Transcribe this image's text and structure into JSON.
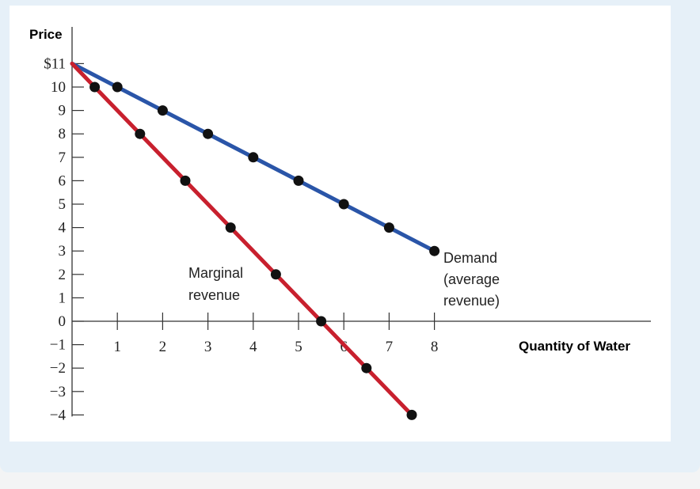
{
  "chart_data": {
    "type": "line",
    "ylabel": "Price",
    "xlabel": "Quantity of Water",
    "xlim": [
      0,
      8
    ],
    "ylim": [
      -4,
      11
    ],
    "x_ticks": [
      "1",
      "2",
      "3",
      "4",
      "5",
      "6",
      "7",
      "8"
    ],
    "y_ticks": [
      {
        "value": 11,
        "label": "$11"
      },
      {
        "value": 10,
        "label": "10"
      },
      {
        "value": 9,
        "label": "9"
      },
      {
        "value": 8,
        "label": "8"
      },
      {
        "value": 7,
        "label": "7"
      },
      {
        "value": 6,
        "label": "6"
      },
      {
        "value": 5,
        "label": "5"
      },
      {
        "value": 4,
        "label": "4"
      },
      {
        "value": 3,
        "label": "3"
      },
      {
        "value": 2,
        "label": "2"
      },
      {
        "value": 1,
        "label": "1"
      },
      {
        "value": 0,
        "label": "0"
      },
      {
        "value": -1,
        "label": "−1"
      },
      {
        "value": -2,
        "label": "−2"
      },
      {
        "value": -3,
        "label": "−3"
      },
      {
        "value": -4,
        "label": "−4"
      }
    ],
    "grid": false,
    "series": [
      {
        "key": "demand",
        "color": "#2a55a8",
        "line": {
          "x": [
            0,
            8
          ],
          "y": [
            11,
            3
          ]
        },
        "points": [
          {
            "x": 1,
            "y": 10
          },
          {
            "x": 2,
            "y": 9
          },
          {
            "x": 3,
            "y": 8
          },
          {
            "x": 4,
            "y": 7
          },
          {
            "x": 5,
            "y": 6
          },
          {
            "x": 6,
            "y": 5
          },
          {
            "x": 7,
            "y": 4
          },
          {
            "x": 8,
            "y": 3
          }
        ]
      },
      {
        "key": "marginal_revenue",
        "color": "#c8202e",
        "line": {
          "x": [
            0,
            7.5
          ],
          "y": [
            11,
            -4
          ]
        },
        "points": [
          {
            "x": 0.5,
            "y": 10
          },
          {
            "x": 1.5,
            "y": 8
          },
          {
            "x": 2.5,
            "y": 6
          },
          {
            "x": 3.5,
            "y": 4
          },
          {
            "x": 4.5,
            "y": 2
          },
          {
            "x": 5.5,
            "y": 0
          },
          {
            "x": 6.5,
            "y": -2
          },
          {
            "x": 7.5,
            "y": -4
          }
        ]
      }
    ],
    "annotations": {
      "demand": [
        "Demand",
        "(average",
        "revenue)"
      ],
      "marginal_revenue": [
        "Marginal",
        "revenue"
      ]
    }
  }
}
